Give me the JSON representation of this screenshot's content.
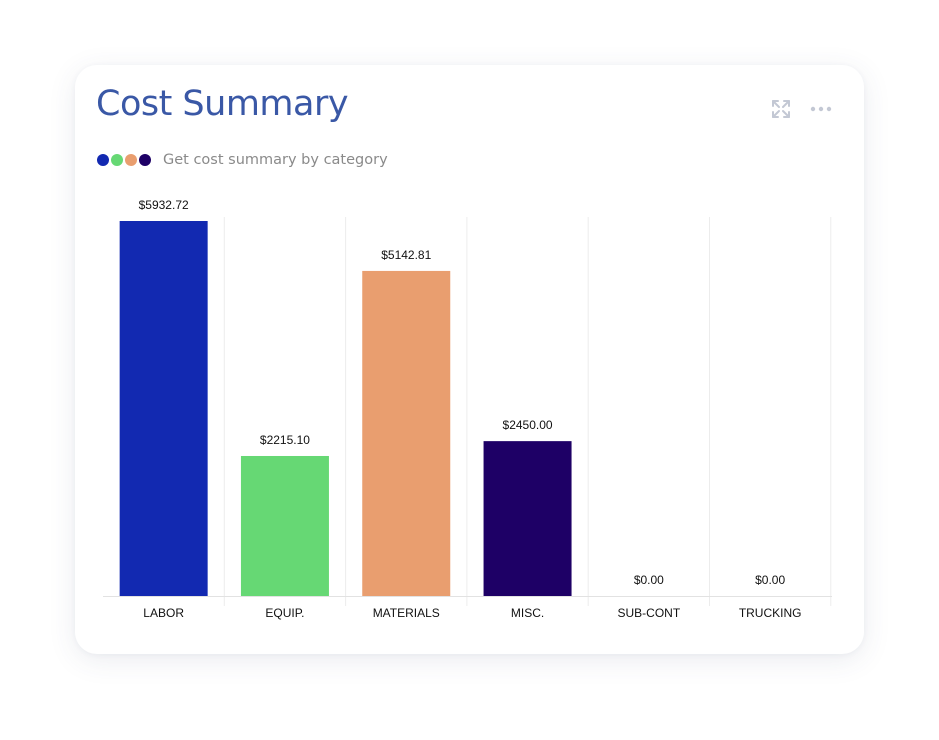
{
  "card": {
    "title": "Cost Summary",
    "subtitle": "Get cost summary by category",
    "expand_icon": "expand-icon",
    "more_icon": "more-horizontal-icon",
    "legend_colors": [
      "#1229b1",
      "#66d874",
      "#e99e6f",
      "#1e0066"
    ]
  },
  "chart_data": {
    "type": "bar",
    "title": "Cost Summary",
    "subtitle": "Get cost summary by category",
    "categories": [
      "LABOR",
      "EQUIP.",
      "MATERIALS",
      "MISC.",
      "SUB-CONT",
      "TRUCKING"
    ],
    "values": [
      5932.72,
      2215.1,
      5142.81,
      2450.0,
      0.0,
      0.0
    ],
    "data_labels": [
      "$5932.72",
      "$2215.10",
      "$5142.81",
      "$2450.00",
      "$0.00",
      "$0.00"
    ],
    "colors": [
      "#1229b1",
      "#66d874",
      "#e99e6f",
      "#1e0066",
      "#cccccc",
      "#cccccc"
    ],
    "xlabel": "",
    "ylabel": "",
    "ylim": [
      0,
      5932.72
    ],
    "grid": true,
    "legend": false
  }
}
